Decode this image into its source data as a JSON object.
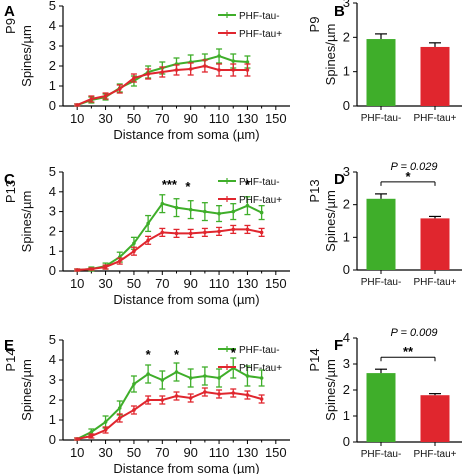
{
  "colors": {
    "green": "#3fae2a",
    "red": "#e0262e",
    "axis": "#000000"
  },
  "chart_data": [
    {
      "panel": "A",
      "type": "line",
      "ylabel_top": "P9",
      "ylabel": "Spines/µm",
      "xlabel": "Distance from soma (µm)",
      "xlim": [
        0,
        160
      ],
      "ylim": [
        0,
        5
      ],
      "xticks": [
        10,
        30,
        50,
        70,
        90,
        110,
        130,
        150
      ],
      "yticks": [
        0,
        1,
        2,
        3,
        4,
        5
      ],
      "legend": {
        "placement": "top-right"
      },
      "series": [
        {
          "name": "PHF-tau-",
          "color_key": "green",
          "x": [
            10,
            20,
            30,
            40,
            50,
            60,
            70,
            80,
            90,
            100,
            110,
            120,
            130
          ],
          "y": [
            0.05,
            0.3,
            0.45,
            0.9,
            1.25,
            1.7,
            1.9,
            2.1,
            2.2,
            2.3,
            2.5,
            2.25,
            2.2
          ],
          "err": [
            0.05,
            0.15,
            0.15,
            0.2,
            0.25,
            0.3,
            0.3,
            0.3,
            0.35,
            0.3,
            0.35,
            0.35,
            0.3
          ]
        },
        {
          "name": "PHF-tau+",
          "color_key": "red",
          "x": [
            10,
            20,
            30,
            40,
            50,
            60,
            70,
            80,
            90,
            100,
            110,
            120,
            130
          ],
          "y": [
            0.05,
            0.35,
            0.5,
            0.85,
            1.4,
            1.6,
            1.7,
            1.8,
            1.85,
            2.0,
            1.8,
            1.8,
            1.8
          ],
          "err": [
            0.05,
            0.15,
            0.15,
            0.2,
            0.2,
            0.25,
            0.25,
            0.25,
            0.3,
            0.3,
            0.3,
            0.3,
            0.3
          ]
        }
      ],
      "annotations": []
    },
    {
      "panel": "B",
      "type": "bar",
      "ylabel_top": "P9",
      "ylabel": "Spines/µm",
      "ylim": [
        0,
        3
      ],
      "yticks": [
        0,
        1,
        2,
        3
      ],
      "categories": [
        "PHF-tau-",
        "PHF-tau+"
      ],
      "values": [
        1.95,
        1.72
      ],
      "err": [
        0.15,
        0.12
      ],
      "color_keys": [
        "green",
        "red"
      ],
      "pvalue": "",
      "stars": ""
    },
    {
      "panel": "C",
      "type": "line",
      "ylabel_top": "P13",
      "ylabel": "Spines/µm",
      "xlabel": "Distance from soma (µm)",
      "xlim": [
        0,
        160
      ],
      "ylim": [
        0,
        5
      ],
      "xticks": [
        10,
        30,
        50,
        70,
        90,
        110,
        130,
        150
      ],
      "yticks": [
        0,
        1,
        2,
        3,
        4,
        5
      ],
      "legend": {
        "placement": "top-right"
      },
      "series": [
        {
          "name": "PHF-tau-",
          "color_key": "green",
          "x": [
            10,
            20,
            30,
            40,
            50,
            60,
            70,
            80,
            90,
            100,
            110,
            120,
            130,
            140
          ],
          "y": [
            0.05,
            0.1,
            0.25,
            0.7,
            1.4,
            2.4,
            3.4,
            3.2,
            3.1,
            3.0,
            2.9,
            3.0,
            3.3,
            2.95
          ],
          "err": [
            0.05,
            0.1,
            0.15,
            0.25,
            0.3,
            0.4,
            0.45,
            0.45,
            0.45,
            0.45,
            0.4,
            0.4,
            0.45,
            0.35
          ]
        },
        {
          "name": "PHF-tau+",
          "color_key": "red",
          "x": [
            10,
            20,
            30,
            40,
            50,
            60,
            70,
            80,
            90,
            100,
            110,
            120,
            130,
            140
          ],
          "y": [
            0.05,
            0.1,
            0.2,
            0.5,
            1.0,
            1.55,
            1.95,
            1.9,
            1.9,
            1.95,
            2.0,
            2.1,
            2.1,
            1.95
          ],
          "err": [
            0.05,
            0.05,
            0.1,
            0.15,
            0.2,
            0.2,
            0.2,
            0.2,
            0.2,
            0.2,
            0.2,
            0.2,
            0.2,
            0.2
          ]
        }
      ],
      "annotations": [
        {
          "x": 75,
          "y": 4.15,
          "text": "***"
        },
        {
          "x": 88,
          "y": 4.05,
          "text": "*"
        },
        {
          "x": 130,
          "y": 4.15,
          "text": "*"
        }
      ]
    },
    {
      "panel": "D",
      "type": "bar",
      "ylabel_top": "P13",
      "ylabel": "Spines/µm",
      "ylim": [
        0,
        3
      ],
      "yticks": [
        0,
        1,
        2,
        3
      ],
      "categories": [
        "PHF-tau-",
        "PHF-tau+"
      ],
      "values": [
        2.18,
        1.58
      ],
      "err": [
        0.15,
        0.06
      ],
      "color_keys": [
        "green",
        "red"
      ],
      "pvalue": "P = 0.029",
      "stars": "*"
    },
    {
      "panel": "E",
      "type": "line",
      "ylabel_top": "P14",
      "ylabel": "Spines/µm",
      "xlabel": "Distance from soma (µm)",
      "xlim": [
        0,
        160
      ],
      "ylim": [
        0,
        5
      ],
      "xticks": [
        10,
        30,
        50,
        70,
        90,
        110,
        130,
        150
      ],
      "yticks": [
        0,
        1,
        2,
        3,
        4,
        5
      ],
      "legend": {
        "placement": "top-right"
      },
      "series": [
        {
          "name": "PHF-tau-",
          "color_key": "green",
          "x": [
            10,
            20,
            30,
            40,
            50,
            60,
            70,
            80,
            90,
            100,
            110,
            120,
            130,
            140
          ],
          "y": [
            0.05,
            0.4,
            0.9,
            1.6,
            2.8,
            3.3,
            3.0,
            3.4,
            3.1,
            3.2,
            3.1,
            3.6,
            3.2,
            3.1
          ],
          "err": [
            0.05,
            0.15,
            0.3,
            0.35,
            0.4,
            0.45,
            0.45,
            0.45,
            0.45,
            0.45,
            0.45,
            0.5,
            0.5,
            0.4
          ]
        },
        {
          "name": "PHF-tau+",
          "color_key": "red",
          "x": [
            10,
            20,
            30,
            40,
            50,
            60,
            70,
            80,
            90,
            100,
            110,
            120,
            130,
            140
          ],
          "y": [
            0.05,
            0.2,
            0.5,
            1.1,
            1.5,
            2.0,
            2.0,
            2.2,
            2.1,
            2.4,
            2.3,
            2.35,
            2.25,
            2.05
          ],
          "err": [
            0.05,
            0.1,
            0.15,
            0.2,
            0.2,
            0.2,
            0.2,
            0.2,
            0.2,
            0.2,
            0.2,
            0.2,
            0.2,
            0.2
          ]
        }
      ],
      "annotations": [
        {
          "x": 60,
          "y": 4.05,
          "text": "*"
        },
        {
          "x": 80,
          "y": 4.05,
          "text": "*"
        },
        {
          "x": 120,
          "y": 4.15,
          "text": "*"
        }
      ]
    },
    {
      "panel": "F",
      "type": "bar",
      "ylabel_top": "P14",
      "ylabel": "Spines/µm",
      "ylim": [
        0,
        4
      ],
      "yticks": [
        0,
        1,
        2,
        3,
        4
      ],
      "categories": [
        "PHF-tau-",
        "PHF-tau+"
      ],
      "values": [
        2.65,
        1.8
      ],
      "err": [
        0.15,
        0.06
      ],
      "color_keys": [
        "green",
        "red"
      ],
      "pvalue": "P = 0.009",
      "stars": "**"
    }
  ]
}
